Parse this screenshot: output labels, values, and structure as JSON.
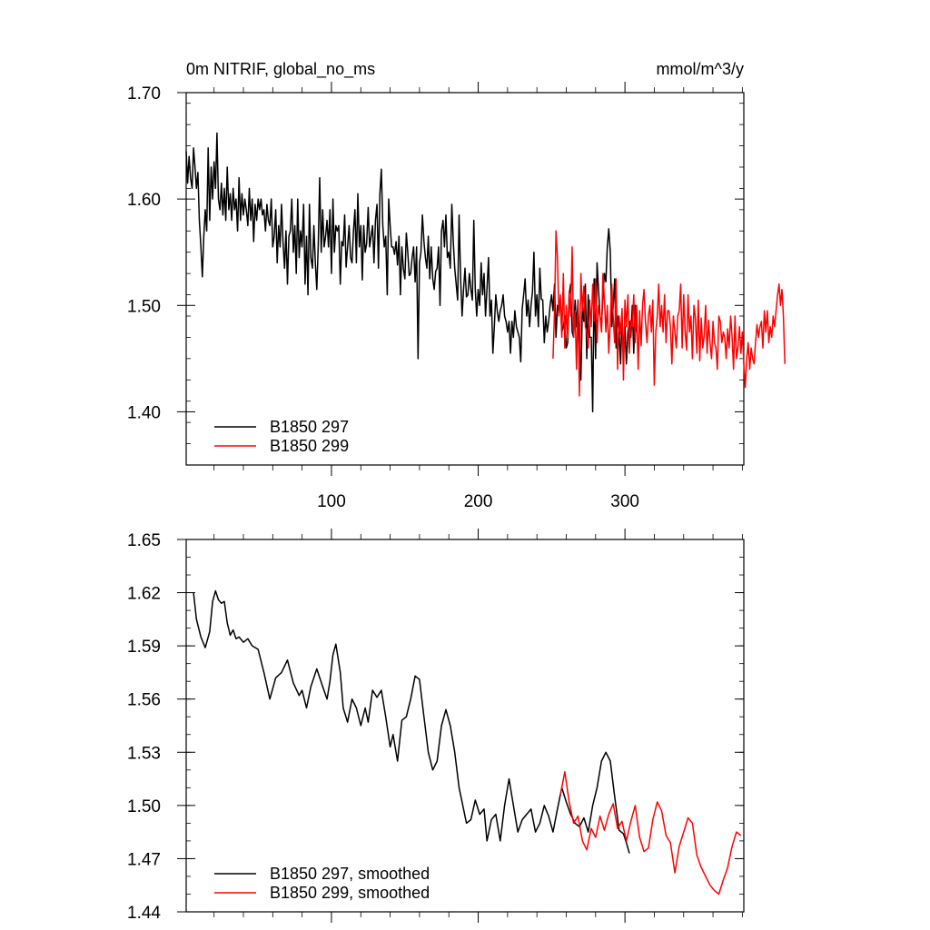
{
  "chart_data": [
    {
      "type": "line",
      "title": "0m NITRIF, global_no_ms",
      "units": "mmol/m^3/y",
      "xlim": [
        1,
        381
      ],
      "ylim": [
        1.35,
        1.7
      ],
      "y_ticks": [
        "1.40",
        "1.50",
        "1.60",
        "1.70"
      ],
      "x_ticks": [
        "100",
        "200",
        "300"
      ],
      "legend_location": "lower-left",
      "series": [
        {
          "name": "B1850 297",
          "color": "#000000",
          "x_start": 1,
          "x_step": 1,
          "y": [
            1.645,
            1.615,
            1.64,
            1.62,
            1.61,
            1.648,
            1.63,
            1.61,
            1.625,
            1.58,
            1.555,
            1.527,
            1.565,
            1.59,
            1.57,
            1.648,
            1.58,
            1.63,
            1.6,
            1.635,
            1.61,
            1.662,
            1.6,
            1.59,
            1.615,
            1.585,
            1.61,
            1.58,
            1.63,
            1.59,
            1.605,
            1.58,
            1.61,
            1.59,
            1.6,
            1.57,
            1.62,
            1.58,
            1.605,
            1.585,
            1.6,
            1.59,
            1.575,
            1.61,
            1.58,
            1.6,
            1.56,
            1.595,
            1.58,
            1.6,
            1.59,
            1.6,
            1.585,
            1.59,
            1.57,
            1.595,
            1.58,
            1.575,
            1.6,
            1.555,
            1.565,
            1.59,
            1.54,
            1.575,
            1.555,
            1.595,
            1.56,
            1.535,
            1.57,
            1.52,
            1.565,
            1.57,
            1.6,
            1.55,
            1.575,
            1.53,
            1.6,
            1.545,
            1.57,
            1.555,
            1.595,
            1.52,
            1.565,
            1.51,
            1.595,
            1.545,
            1.535,
            1.575,
            1.54,
            1.515,
            1.556,
            1.62,
            1.55,
            1.59,
            1.555,
            1.565,
            1.58,
            1.555,
            1.59,
            1.53,
            1.6,
            1.55,
            1.575,
            1.57,
            1.575,
            1.52,
            1.56,
            1.556,
            1.585,
            1.536,
            1.555,
            1.575,
            1.545,
            1.54,
            1.57,
            1.59,
            1.54,
            1.605,
            1.555,
            1.575,
            1.524,
            1.575,
            1.55,
            1.558,
            1.592,
            1.555,
            1.565,
            1.575,
            1.54,
            1.58,
            1.595,
            1.535,
            1.605,
            1.628,
            1.575,
            1.555,
            1.565,
            1.51,
            1.6,
            1.575,
            1.555,
            1.555,
            1.548,
            1.56,
            1.538,
            1.565,
            1.51,
            1.555,
            1.535,
            1.525,
            1.568,
            1.55,
            1.528,
            1.53,
            1.545,
            1.555,
            1.522,
            1.555,
            1.45,
            1.54,
            1.55,
            1.585,
            1.56,
            1.545,
            1.535,
            1.565,
            1.525,
            1.555,
            1.525,
            1.515,
            1.532,
            1.535,
            1.555,
            1.5,
            1.57,
            1.58,
            1.555,
            1.585,
            1.545,
            1.55,
            1.535,
            1.595,
            1.56,
            1.535,
            1.52,
            1.505,
            1.585,
            1.525,
            1.49,
            1.515,
            1.535,
            1.508,
            1.51,
            1.53,
            1.515,
            1.505,
            1.58,
            1.515,
            1.49,
            1.515,
            1.5,
            1.54,
            1.51,
            1.53,
            1.49,
            1.515,
            1.545,
            1.49,
            1.505,
            1.455,
            1.48,
            1.51,
            1.495,
            1.485,
            1.495,
            1.5,
            1.51,
            1.49,
            1.485,
            1.475,
            1.485,
            1.455,
            1.485,
            1.47,
            1.495,
            1.48,
            1.475,
            1.47,
            1.447,
            1.497,
            1.51,
            1.525,
            1.49,
            1.505,
            1.48,
            1.5,
            1.513,
            1.55,
            1.49,
            1.51,
            1.48,
            1.535,
            1.506,
            1.505,
            1.465,
            1.49,
            1.475,
            1.485,
            1.5,
            1.51,
            1.495,
            1.52,
            1.47,
            1.5,
            1.495,
            1.505,
            1.475,
            1.48,
            1.49,
            1.46,
            1.465,
            1.51,
            1.52,
            1.475,
            1.47,
            1.505,
            1.48,
            1.505,
            1.465,
            1.43,
            1.5,
            1.485,
            1.52,
            1.45,
            1.51,
            1.47,
            1.47,
            1.4,
            1.525,
            1.45,
            1.54,
            1.515,
            1.49,
            1.48,
            1.51,
            1.53,
            1.522,
            1.555,
            1.572,
            1.55,
            1.48,
            1.5,
            1.525,
            1.46,
            1.49,
            1.475,
            1.445,
            1.49,
            1.45,
            1.48,
            1.445,
            1.475,
            1.485,
            1.47,
            1.5,
            1.455,
            1.5,
            1.475
          ]
        },
        {
          "name": "B1850 299",
          "color": "#ff0000",
          "x_start": 251,
          "x_step": 1,
          "y": [
            1.45,
            1.495,
            1.57,
            1.545,
            1.49,
            1.51,
            1.47,
            1.53,
            1.46,
            1.5,
            1.47,
            1.513,
            1.49,
            1.555,
            1.47,
            1.495,
            1.44,
            1.505,
            1.415,
            1.53,
            1.495,
            1.518,
            1.48,
            1.475,
            1.46,
            1.505,
            1.48,
            1.52,
            1.485,
            1.525,
            1.465,
            1.5,
            1.49,
            1.475,
            1.53,
            1.505,
            1.475,
            1.5,
            1.455,
            1.485,
            1.52,
            1.488,
            1.465,
            1.525,
            1.44,
            1.49,
            1.473,
            1.497,
            1.43,
            1.505,
            1.48,
            1.51,
            1.455,
            1.486,
            1.48,
            1.51,
            1.465,
            1.5,
            1.44,
            1.495,
            1.462,
            1.5,
            1.515,
            1.485,
            1.465,
            1.49,
            1.5,
            1.475,
            1.505,
            1.425,
            1.475,
            1.49,
            1.52,
            1.48,
            1.5,
            1.475,
            1.51,
            1.465,
            1.495,
            1.495,
            1.48,
            1.445,
            1.49,
            1.475,
            1.46,
            1.49,
            1.495,
            1.52,
            1.46,
            1.51,
            1.475,
            1.458,
            1.51,
            1.475,
            1.49,
            1.45,
            1.5,
            1.488,
            1.455,
            1.505,
            1.448,
            1.488,
            1.46,
            1.472,
            1.5,
            1.455,
            1.486,
            1.465,
            1.45,
            1.485,
            1.465,
            1.46,
            1.44,
            1.49,
            1.485,
            1.465,
            1.475,
            1.47,
            1.45,
            1.478,
            1.46,
            1.49,
            1.47,
            1.44,
            1.49,
            1.45,
            1.46,
            1.48,
            1.455,
            1.475,
            1.445,
            1.423,
            1.45,
            1.465,
            1.44,
            1.46,
            1.45,
            1.445,
            1.465,
            1.482,
            1.47,
            1.48,
            1.485,
            1.46,
            1.495,
            1.475,
            1.495,
            1.465,
            1.48,
            1.47,
            1.49,
            1.48,
            1.495,
            1.51,
            1.52,
            1.5,
            1.515,
            1.49,
            1.445
          ]
        }
      ]
    },
    {
      "type": "line",
      "xlim": [
        1,
        381
      ],
      "ylim": [
        1.44,
        1.65
      ],
      "y_ticks": [
        "1.44",
        "1.47",
        "1.50",
        "1.53",
        "1.56",
        "1.59",
        "1.62",
        "1.65"
      ],
      "legend_location": "lower-left",
      "series": [
        {
          "name": "B1850 297, smoothed",
          "color": "#000000",
          "x": [
            6,
            8,
            11,
            14,
            17,
            19,
            21,
            23,
            25,
            27,
            29,
            31,
            33,
            35,
            37,
            40,
            43,
            46,
            50,
            54,
            58,
            62,
            66,
            70,
            74,
            78,
            80,
            83,
            86,
            90,
            94,
            97,
            99,
            101,
            103,
            106,
            108,
            111,
            114,
            117,
            120,
            123,
            125,
            128,
            131,
            134,
            137,
            140,
            142,
            145,
            148,
            151,
            154,
            157,
            160,
            163,
            166,
            169,
            172,
            175,
            178,
            181,
            184,
            187,
            190,
            192,
            195,
            198,
            201,
            204,
            206,
            209,
            212,
            215,
            218,
            221,
            224,
            227,
            230,
            233,
            236,
            239,
            242,
            245,
            248,
            251,
            254,
            257,
            260,
            263,
            266,
            269,
            272,
            275,
            278,
            281,
            284,
            287,
            290,
            293,
            296,
            299,
            301,
            303
          ],
          "y": [
            1.62,
            1.605,
            1.595,
            1.589,
            1.598,
            1.615,
            1.621,
            1.616,
            1.614,
            1.615,
            1.603,
            1.596,
            1.599,
            1.594,
            1.595,
            1.592,
            1.594,
            1.59,
            1.588,
            1.575,
            1.56,
            1.572,
            1.575,
            1.582,
            1.569,
            1.562,
            1.565,
            1.555,
            1.567,
            1.577,
            1.567,
            1.56,
            1.57,
            1.585,
            1.591,
            1.575,
            1.555,
            1.547,
            1.56,
            1.555,
            1.545,
            1.555,
            1.547,
            1.565,
            1.561,
            1.565,
            1.55,
            1.533,
            1.54,
            1.525,
            1.548,
            1.55,
            1.56,
            1.573,
            1.571,
            1.55,
            1.53,
            1.52,
            1.525,
            1.545,
            1.554,
            1.545,
            1.53,
            1.51,
            1.498,
            1.49,
            1.492,
            1.503,
            1.495,
            1.498,
            1.48,
            1.492,
            1.495,
            1.48,
            1.5,
            1.515,
            1.5,
            1.485,
            1.492,
            1.495,
            1.498,
            1.485,
            1.49,
            1.5,
            1.494,
            1.485,
            1.498,
            1.51,
            1.502,
            1.495,
            1.49,
            1.488,
            1.493,
            1.485,
            1.5,
            1.51,
            1.525,
            1.53,
            1.525,
            1.505,
            1.486,
            1.484,
            1.479,
            1.473
          ]
        },
        {
          "name": "B1850 299, smoothed",
          "color": "#ff0000",
          "x": [
            256,
            259,
            262,
            265,
            268,
            271,
            274,
            277,
            280,
            283,
            286,
            289,
            292,
            295,
            298,
            301,
            304,
            307,
            310,
            313,
            316,
            319,
            322,
            325,
            328,
            331,
            334,
            337,
            340,
            343,
            346,
            349,
            352,
            355,
            358,
            361,
            364,
            367,
            370,
            373,
            376,
            379
          ],
          "y": [
            1.506,
            1.519,
            1.502,
            1.49,
            1.494,
            1.48,
            1.475,
            1.487,
            1.482,
            1.494,
            1.486,
            1.495,
            1.501,
            1.487,
            1.491,
            1.48,
            1.491,
            1.5,
            1.482,
            1.474,
            1.476,
            1.492,
            1.502,
            1.497,
            1.483,
            1.479,
            1.462,
            1.477,
            1.485,
            1.493,
            1.49,
            1.472,
            1.465,
            1.46,
            1.455,
            1.452,
            1.45,
            1.458,
            1.465,
            1.477,
            1.485,
            1.483
          ]
        }
      ]
    }
  ]
}
